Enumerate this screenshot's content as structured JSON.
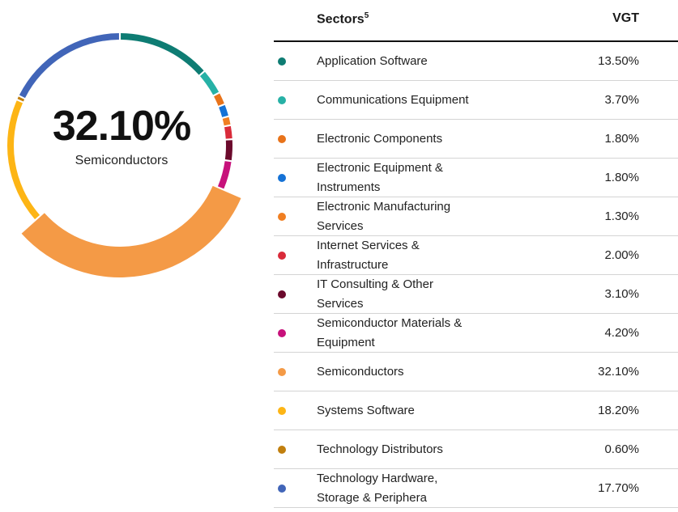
{
  "center": {
    "value": "32.10%",
    "label": "Semiconductors"
  },
  "table": {
    "header_sector": "Sectors",
    "header_sup": "5",
    "header_fund": "VGT"
  },
  "chart_data": {
    "type": "pie",
    "style": "donut",
    "highlighted": "Semiconductors",
    "categories": [
      "Application Software",
      "Communications Equipment",
      "Electronic Components",
      "Electronic Equipment & Instruments",
      "Electronic Manufacturing Services",
      "Internet Services & Infrastructure",
      "IT Consulting & Other Services",
      "Semiconductor Materials & Equipment",
      "Semiconductors",
      "Systems Software",
      "Technology Distributors",
      "Technology Hardware, Storage & Periphera"
    ],
    "values": [
      13.5,
      3.7,
      1.8,
      1.8,
      1.3,
      2.0,
      3.1,
      4.2,
      32.1,
      18.2,
      0.6,
      17.7
    ],
    "labels": [
      "13.50%",
      "3.70%",
      "1.80%",
      "1.80%",
      "1.30%",
      "2.00%",
      "3.10%",
      "4.20%",
      "32.10%",
      "18.20%",
      "0.60%",
      "17.70%"
    ],
    "colors": [
      "#0e7c73",
      "#27b1a6",
      "#e8731a",
      "#1572d6",
      "#f07f22",
      "#d92b3a",
      "#6b0a2c",
      "#c7117b",
      "#f49a46",
      "#fdb515",
      "#c17f0e",
      "#4165b8"
    ]
  }
}
